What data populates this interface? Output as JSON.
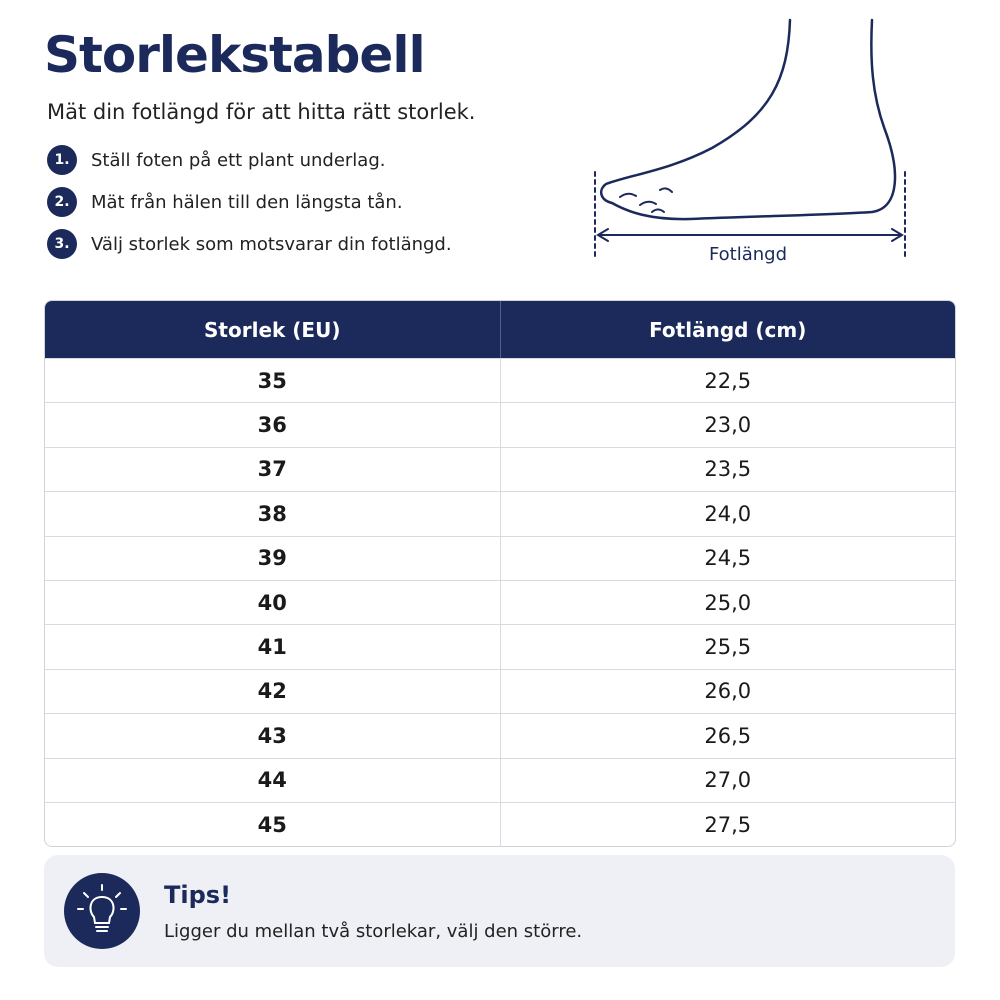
{
  "header": {
    "title": "Storlekstabell",
    "subtitle": "Mät din fotlängd för att hitta rätt storlek."
  },
  "steps": [
    {
      "number": "1.",
      "text": "Ställ foten på ett plant underlag."
    },
    {
      "number": "2.",
      "text": "Mät från hälen till den längsta tån."
    },
    {
      "number": "3.",
      "text": "Välj storlek som motsvarar din fotlängd."
    }
  ],
  "illustration": {
    "label": "Fotlängd"
  },
  "table": {
    "columns": [
      "Storlek (EU)",
      "Fotlängd (cm)"
    ],
    "rows": [
      [
        "35",
        "22,5"
      ],
      [
        "36",
        "23,0"
      ],
      [
        "37",
        "23,5"
      ],
      [
        "38",
        "24,0"
      ],
      [
        "39",
        "24,5"
      ],
      [
        "40",
        "25,0"
      ],
      [
        "41",
        "25,5"
      ],
      [
        "42",
        "26,0"
      ],
      [
        "43",
        "26,5"
      ],
      [
        "44",
        "27,0"
      ],
      [
        "45",
        "27,5"
      ]
    ]
  },
  "tip": {
    "title": "Tips!",
    "text": "Ligger du mellan två storlekar, välj den större."
  }
}
